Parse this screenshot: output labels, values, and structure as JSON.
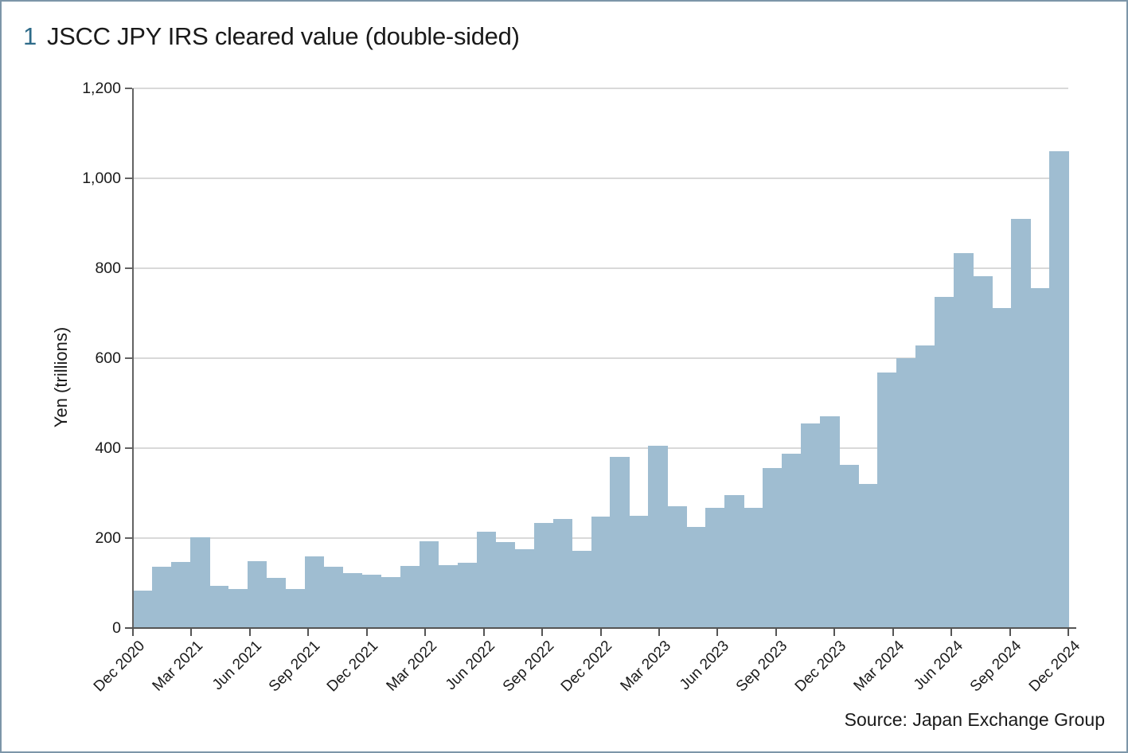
{
  "title": {
    "number": "1",
    "text": "JSCC JPY IRS cleared value (double-sided)"
  },
  "source": "Source: Japan Exchange Group",
  "y_axis": {
    "label": "Yen (trillions)",
    "tick_labels": [
      "0",
      "200",
      "400",
      "600",
      "800",
      "1,000",
      "1,200"
    ],
    "tick_values": [
      0,
      200,
      400,
      600,
      800,
      1000,
      1200
    ]
  },
  "x_axis": {
    "tick_labels": [
      "Dec 2020",
      "Mar 2021",
      "Jun 2021",
      "Sep 2021",
      "Dec 2021",
      "Mar 2022",
      "Jun 2022",
      "Sep 2022",
      "Dec 2022",
      "Mar 2023",
      "Jun 2023",
      "Sep 2023",
      "Dec 2023",
      "Mar 2024",
      "Jun 2024",
      "Sep 2024",
      "Dec 2024"
    ]
  },
  "colors": {
    "bar": "#9fbdd1",
    "figure_number": "#2e6b89",
    "frame_border": "#7d96a9",
    "gridline": "#d9d9d9",
    "axis": "#5a5a5a"
  },
  "chart_data": {
    "type": "bar",
    "title": "JSCC JPY IRS cleared value (double-sided)",
    "xlabel": "",
    "ylabel": "Yen (trillions)",
    "ylim": [
      0,
      1200
    ],
    "grid": "horizontal",
    "legend": "none",
    "gridline_values": [
      200,
      400,
      600,
      800,
      1000,
      1200
    ],
    "x": [
      "Dec 2020",
      "Jan 2021",
      "Feb 2021",
      "Mar 2021",
      "Apr 2021",
      "May 2021",
      "Jun 2021",
      "Jul 2021",
      "Aug 2021",
      "Sep 2021",
      "Oct 2021",
      "Nov 2021",
      "Dec 2021",
      "Jan 2022",
      "Feb 2022",
      "Mar 2022",
      "Apr 2022",
      "May 2022",
      "Jun 2022",
      "Jul 2022",
      "Aug 2022",
      "Sep 2022",
      "Oct 2022",
      "Nov 2022",
      "Dec 2022",
      "Jan 2023",
      "Feb 2023",
      "Mar 2023",
      "Apr 2023",
      "May 2023",
      "Jun 2023",
      "Jul 2023",
      "Aug 2023",
      "Sep 2023",
      "Oct 2023",
      "Nov 2023",
      "Dec 2023",
      "Jan 2024",
      "Feb 2024",
      "Mar 2024",
      "Apr 2024",
      "May 2024",
      "Jun 2024",
      "Jul 2024",
      "Aug 2024",
      "Sep 2024",
      "Oct 2024",
      "Nov 2024",
      "Dec 2024"
    ],
    "values": [
      84,
      137,
      147,
      201,
      94,
      87,
      148,
      112,
      87,
      159,
      136,
      123,
      119,
      114,
      138,
      193,
      139,
      145,
      215,
      192,
      175,
      233,
      242,
      172,
      247,
      380,
      249,
      405,
      270,
      225,
      268,
      296,
      268,
      355,
      387,
      455,
      470,
      362,
      320,
      568,
      600,
      628,
      736,
      833,
      782,
      711,
      910,
      755,
      1060
    ]
  }
}
